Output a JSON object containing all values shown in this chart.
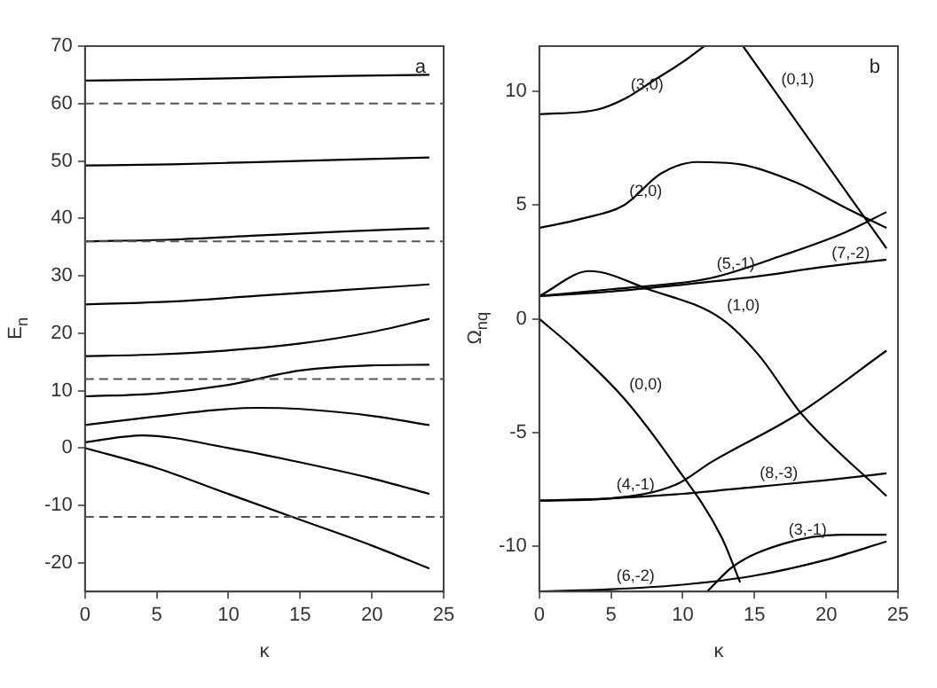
{
  "chart_data": [
    {
      "type": "line",
      "xlabel": "κ",
      "ylabel": "E$_{n}$",
      "xlim": [
        0,
        25
      ],
      "xticks": [
        0,
        5,
        10,
        15,
        20,
        25
      ],
      "ylim": [
        -25,
        70
      ],
      "yticks": [
        -20,
        -10,
        0,
        10,
        20,
        30,
        40,
        50,
        60,
        70
      ],
      "marker": "none",
      "line_style": "solid",
      "annotations": [
        "a"
      ],
      "ref_lines": [
        {
          "axis": "y",
          "value": 60,
          "color": "#555555",
          "line_style": "dashed"
        },
        {
          "axis": "y",
          "value": 36,
          "color": "#555555",
          "line_style": "dashed"
        },
        {
          "axis": "y",
          "value": 12,
          "color": "#555555",
          "line_style": "dashed"
        },
        {
          "axis": "y",
          "value": -12,
          "color": "#555555",
          "line_style": "dashed"
        }
      ],
      "series": [
        {
          "color": "#000000",
          "x": [
            0,
            6,
            12,
            18,
            24
          ],
          "values": [
            64,
            64.2,
            64.5,
            64.8,
            65
          ]
        },
        {
          "color": "#000000",
          "x": [
            0,
            6,
            12,
            18,
            24
          ],
          "values": [
            49.2,
            49.4,
            49.8,
            50.2,
            50.6
          ]
        },
        {
          "color": "#000000",
          "x": [
            0,
            6,
            12,
            18,
            24
          ],
          "values": [
            36,
            36.3,
            37,
            37.7,
            38.3
          ]
        },
        {
          "color": "#000000",
          "x": [
            0,
            6,
            12,
            18,
            24
          ],
          "values": [
            25,
            25.5,
            26.5,
            27.5,
            28.5
          ]
        },
        {
          "color": "#000000",
          "x": [
            0,
            5,
            10,
            15,
            20,
            24
          ],
          "values": [
            16,
            16.3,
            17,
            18.2,
            20.2,
            22.5
          ]
        },
        {
          "color": "#000000",
          "x": [
            0,
            5,
            10,
            15,
            20,
            24
          ],
          "values": [
            9,
            9.5,
            11,
            13.5,
            14.4,
            14.5
          ]
        },
        {
          "color": "#000000",
          "x": [
            0,
            5,
            10,
            12,
            15,
            20,
            24
          ],
          "values": [
            4,
            5.5,
            6.8,
            7,
            6.8,
            5.6,
            4
          ]
        },
        {
          "color": "#000000",
          "x": [
            0,
            4,
            10,
            15,
            20,
            24
          ],
          "values": [
            1,
            2.2,
            0,
            -2.5,
            -5.3,
            -8
          ]
        },
        {
          "color": "#000000",
          "x": [
            0,
            5,
            10,
            15,
            20,
            24
          ],
          "values": [
            0,
            -3.5,
            -8,
            -12.5,
            -17,
            -21
          ]
        }
      ]
    },
    {
      "type": "line",
      "xlabel": "κ",
      "ylabel": "Ω$_{nq}$",
      "xlim": [
        0,
        25
      ],
      "xticks": [
        0,
        5,
        10,
        15,
        20,
        25
      ],
      "ylim": [
        -12,
        12
      ],
      "yticks": [
        -10,
        -5,
        0,
        5,
        10
      ],
      "marker": "none",
      "line_style": "solid",
      "annotations": [
        "b",
        {
          "text": "(3,0)",
          "x": 6,
          "y": 9.7
        },
        {
          "text": "(0,1)",
          "x": 16.5,
          "y": 9.95
        },
        {
          "text": "(2,0)",
          "x": 5.9,
          "y": 5
        },
        {
          "text": "(5,-1)",
          "x": 12,
          "y": 1.8
        },
        {
          "text": "(7,-2)",
          "x": 20,
          "y": 2.3
        },
        {
          "text": "(1,0)",
          "x": 12.7,
          "y": 0
        },
        {
          "text": "(0,0)",
          "x": 5.9,
          "y": -3.5
        },
        {
          "text": "(4,-1)",
          "x": 5,
          "y": -7.9
        },
        {
          "text": "(8,-3)",
          "x": 15,
          "y": -7.4
        },
        {
          "text": "(3,-1)",
          "x": 17,
          "y": -9.9
        },
        {
          "text": "(6,-2)",
          "x": 5,
          "y": -11.9
        }
      ],
      "series": [
        {
          "color": "#000000",
          "x": [
            0,
            4,
            6,
            8,
            10,
            11.5
          ],
          "values": [
            9,
            9.2,
            9.7,
            10.5,
            11.3,
            12
          ]
        },
        {
          "color": "#000000",
          "x": [
            14.2,
            16.5,
            24.2
          ],
          "values": [
            12,
            9.95,
            3.1
          ]
        },
        {
          "color": "#000000",
          "x": [
            0,
            2.9,
            5.9,
            8.5,
            11,
            14,
            17.9,
            21.3,
            24.2
          ],
          "values": [
            4,
            4.4,
            5,
            6.4,
            6.9,
            6.8,
            6,
            4.9,
            4
          ]
        },
        {
          "color": "#000000",
          "x": [
            0,
            5,
            12,
            17,
            21.3,
            24.2
          ],
          "values": [
            1,
            1.3,
            1.8,
            2.8,
            3.8,
            4.7
          ]
        },
        {
          "color": "#000000",
          "x": [
            0,
            5,
            10,
            15,
            20,
            24.2
          ],
          "values": [
            1,
            1.2,
            1.5,
            1.85,
            2.3,
            2.6
          ]
        },
        {
          "color": "#000000",
          "x": [
            0,
            3.5,
            7.6,
            12.7,
            15.3,
            18.3,
            24.2
          ],
          "values": [
            1,
            2.1,
            1.3,
            0,
            -1.6,
            -4.2,
            -7.8
          ]
        },
        {
          "color": "#000000",
          "x": [
            0,
            2.4,
            5.9,
            9.3,
            12.7,
            14
          ],
          "values": [
            0,
            -1.3,
            -3.5,
            -6.3,
            -9.6,
            -11.6
          ]
        },
        {
          "color": "#000000",
          "x": [
            0,
            5,
            9.5,
            12,
            18,
            24.2
          ],
          "values": [
            -8,
            -7.9,
            -7.3,
            -6.3,
            -4.2,
            -1.4
          ]
        },
        {
          "color": "#000000",
          "x": [
            0,
            5,
            10,
            15,
            20,
            24.2
          ],
          "values": [
            -8,
            -7.9,
            -7.7,
            -7.4,
            -7.1,
            -6.8
          ]
        },
        {
          "color": "#000000",
          "x": [
            11.7,
            13.5,
            17,
            21,
            24.2
          ],
          "values": [
            -12,
            -10.9,
            -9.9,
            -9.5,
            -9.5
          ]
        },
        {
          "color": "#000000",
          "x": [
            0,
            5,
            10,
            15,
            20,
            24.2
          ],
          "values": [
            -12,
            -11.9,
            -11.7,
            -11.3,
            -10.6,
            -9.8
          ]
        }
      ]
    }
  ]
}
